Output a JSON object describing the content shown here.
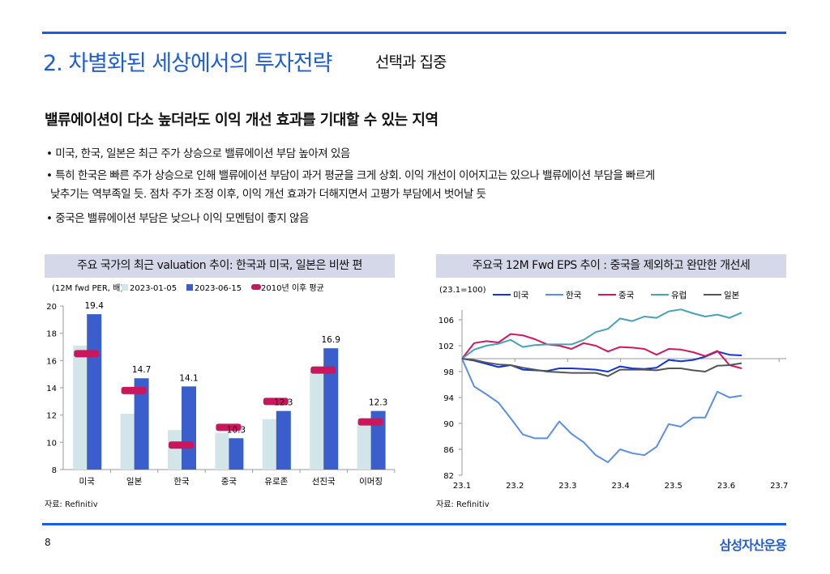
{
  "header": {
    "title": "2. 차별화된 세상에서의 투자전략",
    "subtitle": "선택과 집중"
  },
  "heading": "밸류에이션이 다소 높더라도 이익 개선 효과를 기대할 수 있는 지역",
  "bullets": [
    "• 미국, 한국, 일본은 최근 주가 상승으로 밸류에이션 부담 높아져 있음",
    "• 특히 한국은 빠른 주가 상승으로 인해 밸류에이션 부담이 과거 평균을 크게 상회. 이익 개선이 이어지고는 있으나 밸류에이션 부담을 빠르게",
    "  낮추기는 역부족일 듯. 점차 주가 조정 이후, 이익 개선 효과가 더해지면서 고평가 부담에서 벗어날 듯",
    "• 중국은 밸류에이션 부담은 낮으나 이익 모멘텀이 좋지 않음"
  ],
  "chart_data": [
    {
      "type": "bar",
      "title": "주요 국가의 최근 valuation 추이: 한국과 미국, 일본은 비싼 편",
      "unit_label": "(12M fwd PER, 배)",
      "categories": [
        "미국",
        "일본",
        "한국",
        "중국",
        "유로존",
        "선진국",
        "이머징"
      ],
      "series": [
        {
          "name": "2023-01-05",
          "color": "#d2e6ea",
          "values": [
            17.1,
            12.1,
            10.9,
            10.7,
            11.7,
            15.2,
            11.5
          ]
        },
        {
          "name": "2023-06-15",
          "color": "#3a5fcd",
          "values": [
            19.4,
            14.7,
            14.1,
            10.3,
            12.3,
            16.9,
            12.3
          ]
        },
        {
          "name": "2010년 이후 평균",
          "color": "#c8175d",
          "values": [
            16.5,
            13.8,
            9.8,
            11.1,
            13.0,
            15.3,
            11.5
          ]
        }
      ],
      "data_labels": [
        "19.4",
        "14.7",
        "14.1",
        "10.3",
        "12.3",
        "16.9",
        "12.3"
      ],
      "ylim": [
        8,
        20
      ],
      "yticks": [
        "8",
        "10",
        "12",
        "14",
        "16",
        "18",
        "20"
      ],
      "source": "자료: Refinitiv"
    },
    {
      "type": "line",
      "title": "주요국 12M Fwd EPS 추이 : 중국을 제외하고 완만한 개선세",
      "unit_label": "(23.1=100)",
      "xticks": [
        "23.1",
        "23.2",
        "23.3",
        "23.4",
        "23.5",
        "23.6",
        "23.7"
      ],
      "yticks": [
        "82",
        "86",
        "90",
        "94",
        "98",
        "102",
        "106"
      ],
      "ylim": [
        82,
        106
      ],
      "baseline": 100,
      "series": [
        {
          "name": "미국",
          "color": "#1133dd",
          "values": [
            100,
            99.7,
            99.2,
            98.7,
            99.0,
            98.3,
            98.2,
            98.1,
            98.5,
            98.5,
            98.4,
            98.3,
            98.0,
            98.8,
            98.5,
            98.4,
            98.6,
            99.8,
            99.6,
            99.8,
            100.3,
            101.1,
            100.6,
            100.5
          ]
        },
        {
          "name": "한국",
          "color": "#5b8ee6",
          "values": [
            100,
            95.7,
            94.5,
            93.2,
            90.8,
            88.3,
            87.7,
            87.7,
            90.3,
            88.4,
            87.1,
            85.1,
            84.0,
            86.0,
            85.4,
            85.1,
            86.4,
            89.9,
            89.5,
            90.9,
            90.9,
            94.9,
            94.0,
            94.3
          ]
        },
        {
          "name": "중국",
          "color": "#d01860",
          "values": [
            100,
            102.4,
            102.7,
            102.5,
            103.8,
            103.6,
            103.0,
            102.2,
            102.0,
            101.5,
            102.4,
            102.0,
            101.1,
            101.8,
            101.7,
            101.5,
            100.6,
            101.5,
            101.4,
            101.0,
            100.4,
            101.2,
            99.0,
            98.5
          ]
        },
        {
          "name": "유럽",
          "color": "#45a3b5",
          "values": [
            100,
            101.4,
            102.0,
            102.3,
            102.9,
            101.8,
            102.1,
            102.2,
            102.2,
            102.2,
            102.9,
            104.1,
            104.6,
            106.2,
            105.8,
            106.5,
            106.3,
            107.3,
            107.6,
            107.0,
            106.5,
            106.8,
            106.3,
            107.1
          ]
        },
        {
          "name": "일본",
          "color": "#555555",
          "values": [
            100,
            99.8,
            99.4,
            99.1,
            99.0,
            98.6,
            98.3,
            98.0,
            97.9,
            97.8,
            97.8,
            97.8,
            97.3,
            98.3,
            98.3,
            98.3,
            98.2,
            98.5,
            98.5,
            98.2,
            98.0,
            98.9,
            99.0,
            99.3
          ]
        }
      ],
      "source": "자료: Refinitiv"
    }
  ],
  "footer": {
    "page": "8",
    "logo": "삼성자산운용"
  }
}
